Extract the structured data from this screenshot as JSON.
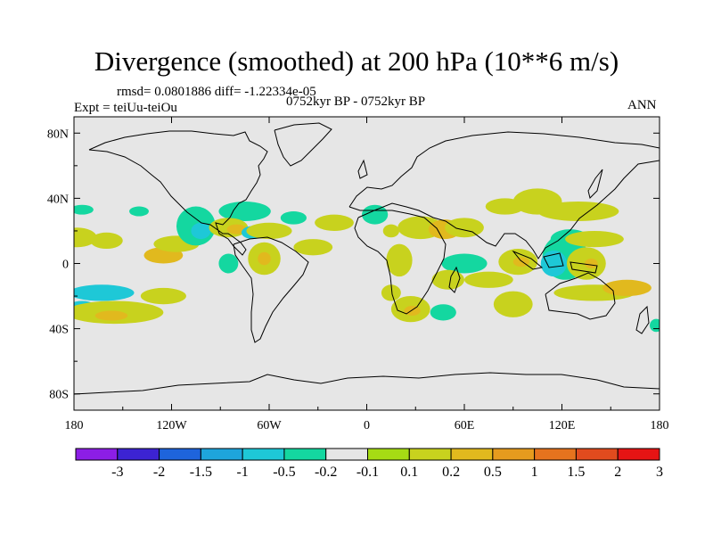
{
  "chart_data": {
    "type": "heatmap",
    "title": "Divergence (smoothed) at 200 hPa (10**6 m/s)",
    "stats_text": "rmsd= 0.0801886 diff= -1.22334e-05",
    "experiment_text": "Expt = teiUu-teiOu",
    "period_text": "0752kyr BP - 0752kyr BP",
    "season_text": "ANN",
    "xlim": [
      -180,
      180
    ],
    "ylim": [
      -90,
      90
    ],
    "x_ticks": [
      -180,
      -120,
      -60,
      0,
      60,
      120,
      180
    ],
    "x_tick_labels": [
      "180",
      "120W",
      "60W",
      "0",
      "60E",
      "120E",
      "180"
    ],
    "y_ticks": [
      80,
      40,
      0,
      -40,
      -80
    ],
    "y_tick_labels": [
      "80N",
      "40N",
      "0",
      "40S",
      "80S"
    ],
    "colorbar": {
      "labels": [
        "-3",
        "-2",
        "-1.5",
        "-1",
        "-0.5",
        "-0.2",
        "-0.1",
        "0.1",
        "0.2",
        "0.5",
        "1",
        "1.5",
        "2",
        "3"
      ],
      "colors": [
        "#8c1ee6",
        "#3c23d2",
        "#1e64dc",
        "#1ea5dc",
        "#1ec8d7",
        "#14d7a0",
        "#e6e6e6",
        "#a6dc14",
        "#c8d21e",
        "#e1b91e",
        "#e69b1e",
        "#e6731e",
        "#e14b1e",
        "#e61414"
      ]
    },
    "blobs": [
      {
        "lon": -178,
        "lat": 16,
        "rx": 12,
        "ry": 6,
        "level": 8
      },
      {
        "lon": -160,
        "lat": 14,
        "rx": 10,
        "ry": 5,
        "level": 8
      },
      {
        "lon": -175,
        "lat": 33,
        "rx": 7,
        "ry": 3,
        "level": 5
      },
      {
        "lon": -140,
        "lat": 32,
        "rx": 6,
        "ry": 3,
        "level": 5
      },
      {
        "lon": -175,
        "lat": -28,
        "rx": 10,
        "ry": 5,
        "level": 4
      },
      {
        "lon": -163,
        "lat": -18,
        "rx": 20,
        "ry": 5,
        "level": 4
      },
      {
        "lon": -155,
        "lat": -30,
        "rx": 30,
        "ry": 7,
        "level": 8
      },
      {
        "lon": -157,
        "lat": -32,
        "rx": 10,
        "ry": 3,
        "level": 9
      },
      {
        "lon": -125,
        "lat": -20,
        "rx": 14,
        "ry": 5,
        "level": 8
      },
      {
        "lon": -125,
        "lat": 5,
        "rx": 12,
        "ry": 5,
        "level": 9
      },
      {
        "lon": -117,
        "lat": 12,
        "rx": 14,
        "ry": 5,
        "level": 8
      },
      {
        "lon": -105,
        "lat": 23,
        "rx": 12,
        "ry": 12,
        "level": 5
      },
      {
        "lon": -102,
        "lat": 20,
        "rx": 6,
        "ry": 5,
        "level": 4
      },
      {
        "lon": -75,
        "lat": 32,
        "rx": 16,
        "ry": 6,
        "level": 5
      },
      {
        "lon": -85,
        "lat": 22,
        "rx": 12,
        "ry": 6,
        "level": 8
      },
      {
        "lon": -80,
        "lat": 21,
        "rx": 6,
        "ry": 3,
        "level": 9
      },
      {
        "lon": -70,
        "lat": 19,
        "rx": 7,
        "ry": 4,
        "level": 4
      },
      {
        "lon": -60,
        "lat": 20,
        "rx": 14,
        "ry": 5,
        "level": 8
      },
      {
        "lon": -45,
        "lat": 28,
        "rx": 8,
        "ry": 4,
        "level": 5
      },
      {
        "lon": -63,
        "lat": 3,
        "rx": 10,
        "ry": 10,
        "level": 8
      },
      {
        "lon": -63,
        "lat": 3,
        "rx": 4,
        "ry": 4,
        "level": 9
      },
      {
        "lon": -85,
        "lat": 0,
        "rx": 6,
        "ry": 6,
        "level": 5
      },
      {
        "lon": -33,
        "lat": 10,
        "rx": 12,
        "ry": 5,
        "level": 8
      },
      {
        "lon": -20,
        "lat": 25,
        "rx": 12,
        "ry": 5,
        "level": 8
      },
      {
        "lon": 5,
        "lat": 30,
        "rx": 8,
        "ry": 6,
        "level": 5
      },
      {
        "lon": 15,
        "lat": 20,
        "rx": 5,
        "ry": 4,
        "level": 8
      },
      {
        "lon": 33,
        "lat": 22,
        "rx": 14,
        "ry": 7,
        "level": 8
      },
      {
        "lon": 48,
        "lat": 21,
        "rx": 10,
        "ry": 6,
        "level": 9
      },
      {
        "lon": 60,
        "lat": 22,
        "rx": 12,
        "ry": 6,
        "level": 8
      },
      {
        "lon": 20,
        "lat": 2,
        "rx": 8,
        "ry": 10,
        "level": 8
      },
      {
        "lon": 60,
        "lat": 0,
        "rx": 14,
        "ry": 6,
        "level": 5
      },
      {
        "lon": 50,
        "lat": -10,
        "rx": 10,
        "ry": 6,
        "level": 8
      },
      {
        "lon": 27,
        "lat": -28,
        "rx": 12,
        "ry": 8,
        "level": 8
      },
      {
        "lon": 28,
        "lat": -29,
        "rx": 5,
        "ry": 3,
        "level": 9
      },
      {
        "lon": 15,
        "lat": -18,
        "rx": 6,
        "ry": 5,
        "level": 8
      },
      {
        "lon": 47,
        "lat": -30,
        "rx": 8,
        "ry": 5,
        "level": 5
      },
      {
        "lon": 85,
        "lat": 35,
        "rx": 12,
        "ry": 5,
        "level": 8
      },
      {
        "lon": 93,
        "lat": 1,
        "rx": 12,
        "ry": 8,
        "level": 8
      },
      {
        "lon": 95,
        "lat": 1,
        "rx": 5,
        "ry": 3,
        "level": 9
      },
      {
        "lon": 75,
        "lat": -10,
        "rx": 15,
        "ry": 5,
        "level": 8
      },
      {
        "lon": 90,
        "lat": -25,
        "rx": 12,
        "ry": 8,
        "level": 8
      },
      {
        "lon": 105,
        "lat": 38,
        "rx": 15,
        "ry": 8,
        "level": 8
      },
      {
        "lon": 130,
        "lat": 32,
        "rx": 25,
        "ry": 6,
        "level": 8
      },
      {
        "lon": 125,
        "lat": 15,
        "rx": 12,
        "ry": 6,
        "level": 5
      },
      {
        "lon": 122,
        "lat": 4,
        "rx": 14,
        "ry": 14,
        "level": 5
      },
      {
        "lon": 115,
        "lat": 0,
        "rx": 8,
        "ry": 8,
        "level": 4
      },
      {
        "lon": 140,
        "lat": 15,
        "rx": 18,
        "ry": 5,
        "level": 8
      },
      {
        "lon": 135,
        "lat": 0,
        "rx": 12,
        "ry": 10,
        "level": 8
      },
      {
        "lon": 138,
        "lat": 0,
        "rx": 4,
        "ry": 3,
        "level": 9
      },
      {
        "lon": 140,
        "lat": -18,
        "rx": 25,
        "ry": 5,
        "level": 8
      },
      {
        "lon": 160,
        "lat": -15,
        "rx": 15,
        "ry": 5,
        "level": 9
      },
      {
        "lon": 178,
        "lat": -38,
        "rx": 4,
        "ry": 4,
        "level": 5
      }
    ]
  }
}
